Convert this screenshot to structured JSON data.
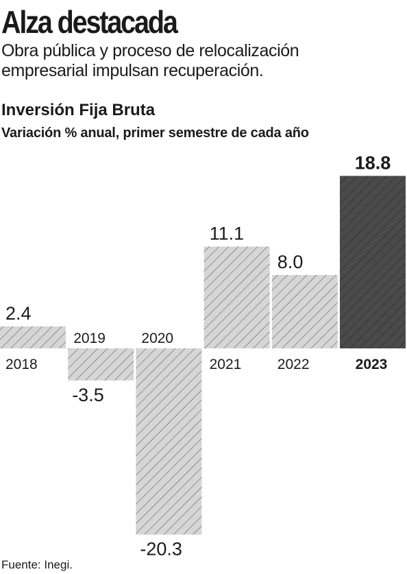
{
  "headline": "Alza destacada",
  "subheadline": {
    "line1": "Obra pública y proceso de relocalización",
    "line2": "empresarial impulsan recuperación."
  },
  "footer": "Fuente: Inegi.",
  "colors": {
    "bar_fill": "#d6d6d6",
    "bar_hatch": "#555555",
    "highlight_fill": "#4a4a4a",
    "highlight_hatch": "#2a2a2a",
    "text": "#1a1a1a"
  },
  "chart_data": {
    "type": "bar",
    "title": "Inversión Fija Bruta",
    "subtitle": "Variación % anual, primer semestre de cada año",
    "categories": [
      "2018",
      "2019",
      "2020",
      "2021",
      "2022",
      "2023"
    ],
    "values": [
      2.4,
      -3.5,
      -20.3,
      11.1,
      8.0,
      18.8
    ],
    "value_labels": [
      "2.4",
      "-3.5",
      "-20.3",
      "11.1",
      "8.0",
      "18.8"
    ],
    "highlight": "2023",
    "xlabel": "",
    "ylabel": "",
    "grid": false,
    "legend": "none"
  }
}
